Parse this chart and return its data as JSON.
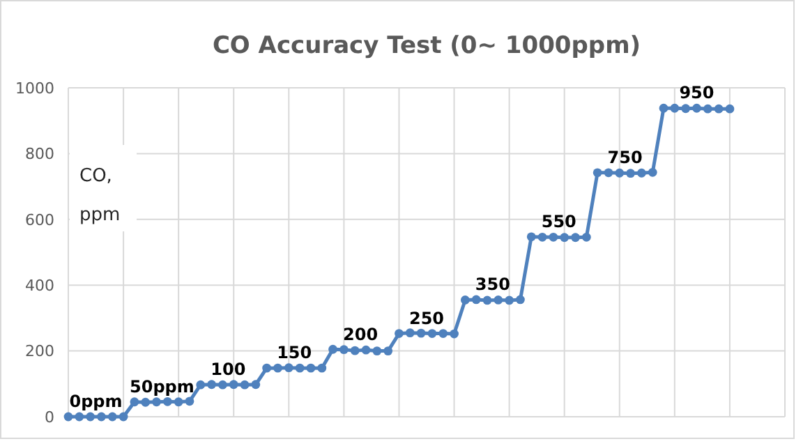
{
  "chart_data": {
    "type": "line",
    "title": "CO Accuracy Test (0~ 1000ppm)",
    "ylabel": "CO, ppm",
    "color": "#4f81bd",
    "marker": "circle",
    "line_style": "solid",
    "grid": true,
    "categories": [
      null,
      null,
      null,
      null,
      null,
      null,
      null,
      null,
      null,
      null,
      null,
      null,
      null,
      null,
      null,
      null,
      null,
      null,
      null,
      null,
      null,
      null,
      null,
      null,
      null,
      null,
      null,
      null,
      null,
      null,
      null,
      null,
      null,
      null,
      null,
      null,
      null,
      null,
      null,
      null,
      null,
      null,
      null,
      null,
      null,
      null,
      null,
      null,
      null,
      null,
      null,
      null,
      null,
      null,
      null,
      null,
      null,
      null,
      null,
      null,
      null,
      null,
      null,
      null,
      null,
      null
    ],
    "ylim": [
      0,
      1000
    ],
    "yticks": [
      0,
      200,
      400,
      600,
      800,
      1000
    ],
    "values": [
      0,
      0,
      0,
      0,
      0,
      0,
      45,
      44,
      45,
      46,
      45,
      47,
      97,
      98,
      97,
      98,
      97,
      98,
      148,
      148,
      149,
      148,
      148,
      148,
      205,
      204,
      201,
      203,
      200,
      200,
      253,
      255,
      254,
      253,
      253,
      252,
      355,
      356,
      354,
      355,
      354,
      356,
      547,
      546,
      546,
      545,
      545,
      546,
      742,
      742,
      741,
      740,
      741,
      743,
      938,
      938,
      937,
      938,
      936,
      936,
      936,
      null,
      null,
      null,
      null,
      null
    ],
    "annotations": [
      {
        "text": "0ppm",
        "y": 0
      },
      {
        "text": "50ppm",
        "y": 45
      },
      {
        "text": "100",
        "y": 97
      },
      {
        "text": "150",
        "y": 148
      },
      {
        "text": "200",
        "y": 203
      },
      {
        "text": "250",
        "y": 253
      },
      {
        "text": "350",
        "y": 355
      },
      {
        "text": "550",
        "y": 546
      },
      {
        "text": "750",
        "y": 742
      },
      {
        "text": "950",
        "y": 938
      }
    ]
  }
}
